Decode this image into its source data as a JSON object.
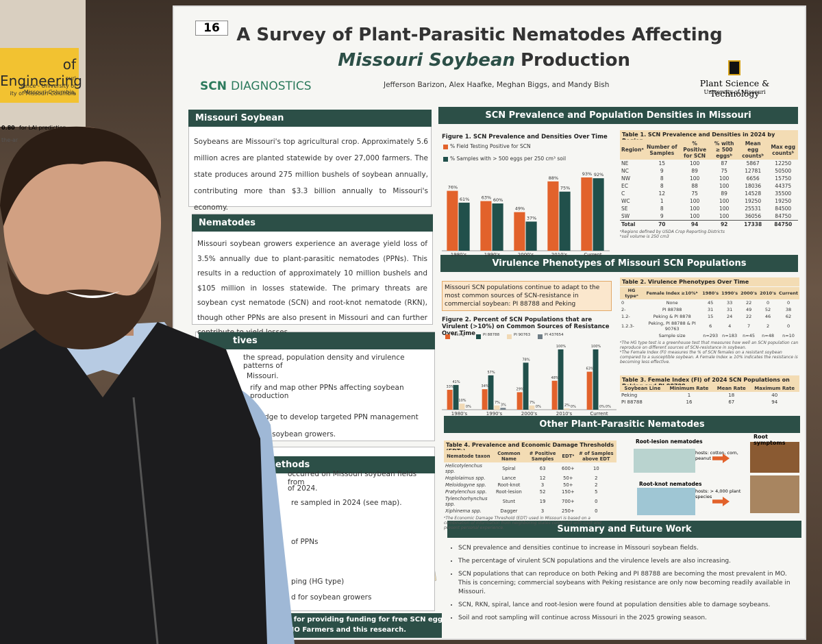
{
  "side_poster": {
    "title": "of Engineering",
    "lines": [
      "ouri",
      "ience - University of Missouri-Columbia,",
      "ity of Missouri-Columbia"
    ],
    "note_value": "0.80",
    "note_rest": "for LAI prediction",
    "fragment": "the-ar"
  },
  "poster": {
    "number": "16",
    "title": {
      "line1": "A Survey of Plant-Parasitic Nematodes Affecting",
      "emphasis": "Missouri Soybean",
      "line2_rest": "Production"
    },
    "logo_left": {
      "bold": "SCN",
      "rest": "DIAGNOSTICS"
    },
    "authors": "Jefferson Barizon, Alex Haafke, Meghan Biggs, and Mandy Bish",
    "logo_right": {
      "name": "Plant Science & Technology",
      "sub": "University of Missouri"
    },
    "missouri_soybean": {
      "heading": "Missouri Soybean",
      "body": "Soybeans are Missouri's top agricultural crop. Approximately 5.6 million acres are planted statewide by over 27,000 farmers. The state produces around 275 million bushels of soybean annually, contributing more than $3.3 billion annually to Missouri's economy."
    },
    "nematodes": {
      "heading": "Nematodes",
      "body": "Missouri soybean growers experience an average yield loss of 3.5% annually due to plant-parasitic nematodes (PPNs). This results in a reduction of approximately 10 million bushels and $105 million in losses statewide. The primary threats are soybean cyst nematode (SCN) and root-knot nematode (RKN), though other PPNs are also present in Missouri and can further contribute to yield losses."
    },
    "objectives": {
      "heading": "tives",
      "lines": [
        "the spread, population density and virulence patterns of",
        "Missouri.",
        "rify and map other PPNs affecting soybean production",
        "wledge to develop targeted PPN management",
        "souri soybean growers."
      ]
    },
    "methods": {
      "heading": "ethods",
      "lines": [
        "occurred on Missouri soybean fields from",
        "of 2024.",
        "re sampled in 2024 (see map).",
        "of PPNs",
        "ping (HG type)",
        "d for soybean growers"
      ]
    },
    "acknowledgement": [
      "ybeans for providing funding for free SCN egg counts",
      "pport MO Farmers and this research."
    ],
    "prevalence": {
      "heading": "SCN Prevalence and Population Densities in Missouri",
      "figure": {
        "title": "Figure 1. SCN Prevalence and Densities Over Time",
        "categories": [
          "1980's",
          "1990's",
          "2000's",
          "2010's",
          "Current"
        ],
        "series": [
          {
            "name": "% Field Testing Positive for SCN",
            "color": "#e2622b",
            "values": [
              76,
              63,
              49,
              88,
              93
            ],
            "value_labels": [
              "76%",
              "63%",
              "49%",
              "88%",
              "93%"
            ]
          },
          {
            "name": "% Samples with > 500 eggs per 250 cm³ soil",
            "color": "#21504b",
            "values": [
              61,
              60,
              37,
              75,
              92
            ],
            "value_labels": [
              "61%",
              "60%",
              "37%",
              "75%",
              "92%"
            ]
          }
        ]
      },
      "table": {
        "title": "Table 1. SCN Prevalence and Densities in 2024 by Region",
        "header": [
          "Regionᵃ",
          "Number of Samples",
          "% Positive for SCN",
          "% with ≥ 500 eggsᵇ",
          "Mean egg countsᵇ",
          "Max egg countsᵇ"
        ],
        "rows": [
          [
            "NE",
            15,
            100,
            87,
            5867,
            12250
          ],
          [
            "NC",
            9,
            89,
            75,
            12781,
            50500
          ],
          [
            "NW",
            8,
            100,
            100,
            6656,
            15750
          ],
          [
            "EC",
            8,
            88,
            100,
            18036,
            44375
          ],
          [
            "C",
            12,
            75,
            89,
            14528,
            35500
          ],
          [
            "WC",
            1,
            100,
            100,
            19250,
            19250
          ],
          [
            "SE",
            8,
            100,
            100,
            25531,
            84500
          ],
          [
            "SW",
            9,
            100,
            100,
            36056,
            84750
          ],
          [
            "Total",
            70,
            94,
            92,
            17338,
            84750
          ]
        ],
        "notes": [
          "ᵃRegions defined by USDA Crop Reporting Districts",
          "ᵇsoil volume is 250 cm3"
        ]
      }
    },
    "virulence": {
      "heading": "Virulence Phenotypes of Missouri SCN Populations",
      "intro": "Missouri SCN populations continue to adapt to the most common sources of SCN-resistance in commercial soybean: PI 88788 and Peking",
      "figure": {
        "title": "Figure 2. Percent of SCN Populations that are Virulent (>10%) on Common Sources of Resistance Over Time",
        "categories": [
          "1980's",
          "1990's",
          "2000's",
          "2010's",
          "Current"
        ],
        "series": [
          {
            "name": "Peking",
            "color": "#e2622b",
            "values": [
              33,
              34,
              29,
              48,
              63
            ],
            "value_labels": [
              "33%",
              "34%",
              "29%",
              "48%",
              "63%"
            ]
          },
          {
            "name": "PI 88788",
            "color": "#21504b",
            "values": [
              41,
              57,
              78,
              100,
              100
            ],
            "value_labels": [
              "41%",
              "57%",
              "78%",
              "100%",
              "100%"
            ]
          },
          {
            "name": "PI 90763",
            "color": "#f1d9b5",
            "values": [
              10,
              7,
              7,
              2,
              0
            ],
            "value_labels": [
              "10%",
              "7%",
              "7%",
              "2%",
              "0%"
            ]
          },
          {
            "name": "PI 437654",
            "color": "#6f7d86",
            "values": [
              0,
              3,
              0,
              0,
              0
            ],
            "value_labels": [
              "0%",
              "3%",
              "0%",
              "0%",
              "0%"
            ]
          }
        ]
      },
      "table2": {
        "title": "Table 2. Virulence Phenotypes Over Time",
        "header": [
          "HG typeᵃ",
          "Female Index ≥10%ᵇ",
          "1980's",
          "1990's",
          "2000's",
          "2010's",
          "Current"
        ],
        "rows": [
          [
            "0",
            "None",
            45,
            33,
            22,
            0,
            0
          ],
          [
            "2-",
            "PI 88788",
            31,
            31,
            49,
            52,
            38
          ],
          [
            "1.2-",
            "Peking & PI 8878",
            15,
            24,
            22,
            46,
            62
          ],
          [
            "1.2.3-",
            "Peking, PI 88788 & PI 90763",
            6,
            4,
            7,
            2,
            0
          ],
          [
            "",
            "Sample size",
            "n=293",
            "n=183",
            "n=45",
            "n=48",
            "n=10"
          ]
        ],
        "notes": [
          "ᵃThe HG type test is a greenhouse test that measures how well an SCN population can reproduce on different sources of SCN-resistance in soybean.",
          "ᵇThe Female Index (FI) measures the % of SCN females on a resistant soybean compared to a susceptible soybean. A Female Index ≥ 10% indicates the resistance is becoming less effective."
        ]
      },
      "table3": {
        "title": "Table 3. Female Index (FI) of 2024 SCN Populations on Peking and PI 88788",
        "header": [
          "Soybean Line",
          "Minimum Rate",
          "Mean Rate",
          "Maximum Rate"
        ],
        "rows": [
          [
            "Peking",
            1,
            18,
            40
          ],
          [
            "PI 88788",
            16,
            67,
            94
          ]
        ],
        "notes": []
      }
    },
    "other_ppn": {
      "heading": "Other Plant-Parasitic Nematodes",
      "table": {
        "title": "Table 4. Prevalence and Economic Damage Thresholds (EDTs)",
        "header": [
          "Nematode taxon",
          "Common Name",
          "# Positive Samples",
          "EDTᵃ",
          "# of Samples above EDT"
        ],
        "rows": [
          [
            "Helicotylenchus spp.",
            "Spiral",
            63,
            "600+",
            10
          ],
          [
            "Hoplolaimus spp.",
            "Lance",
            12,
            "50+",
            2
          ],
          [
            "Meloidogyne spp.",
            "Root-knot",
            3,
            "50+",
            2
          ],
          [
            "Pratylenchus spp.",
            "Root-lesion",
            52,
            "150+",
            5
          ],
          [
            "Tylenchorhynchus spp.",
            "Stunt",
            19,
            "700+",
            0
          ],
          [
            "Xiphinema spp.",
            "Dagger",
            3,
            "250+",
            0
          ]
        ],
        "notes": [
          "ᵃThe Economic Damage Threshold (EDT) used in Missouri is based on a combination of information from neighboring states combined with past and present personal experience."
        ]
      },
      "root_lesion": "Root-lesion nematodes",
      "root_lesion_hosts": "hosts: cotton, corn, peanut",
      "root_knot": "Root-knot nematodes",
      "root_knot_hosts": "hosts: > 4,000 plant species",
      "root_symptoms": "Root symptoms"
    },
    "summary": {
      "heading": "Summary and Future Work",
      "bullets": [
        "SCN prevalence and densities continue to increase in Missouri soybean fields.",
        "The percentage of virulent SCN populations and the virulence levels are also increasing.",
        "SCN populations that can reproduce on both Peking and PI 88788 are becoming the most prevalent in MO. This is concerning; commercial soybeans with Peking resistance are only now becoming readily available in Missouri.",
        "SCN, RKN, spiral, lance and root-lesion were found at population densities able to damage soybeans.",
        "Soil and root sampling will continue across Missouri in the 2025 growing season."
      ]
    }
  }
}
